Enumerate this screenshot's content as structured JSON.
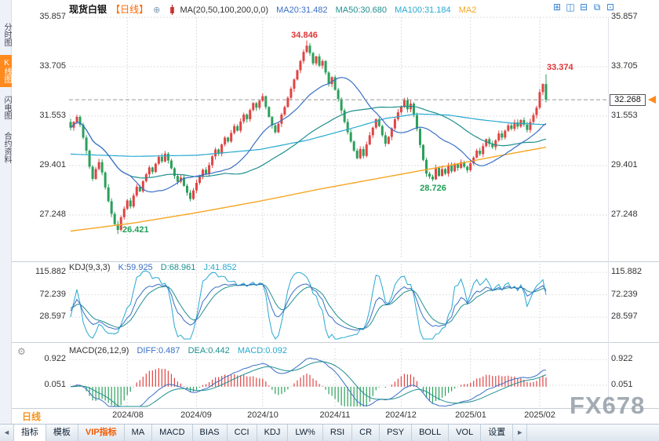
{
  "header": {
    "symbol": "现货白银",
    "period_tag": "【日线】",
    "ma_settings": "MA(20,50,100,200,0,0)",
    "ma20_value": "MA20:31.482",
    "ma50_value": "MA50:30.680",
    "ma100_value": "MA100:31.184",
    "ma200_value": "MA2"
  },
  "icons": {
    "add": "⊕",
    "layout_grid": "⊞",
    "layout_split": "◫",
    "layout_minus": "⊟",
    "layout_overlay": "⧉",
    "layout_box": "⊡",
    "gear": "⚙",
    "scroll_left": "◄",
    "scroll_right": "►"
  },
  "sidebar": {
    "items": [
      {
        "label": "分时图"
      },
      {
        "label": "K线图"
      },
      {
        "label": "闪电图"
      },
      {
        "label": "合约资料"
      }
    ]
  },
  "price_axis": {
    "ticks": [
      "35.857",
      "33.705",
      "31.553",
      "29.401",
      "27.248"
    ],
    "current": "32.268"
  },
  "annotations": {
    "peak_high": "34.846",
    "recent_high": "33.374",
    "december_low": "28.726",
    "august_low": "26.421"
  },
  "kdj_panel": {
    "title": "KDJ(9,3,3)",
    "k": "K:59.925",
    "d": "D:68.961",
    "j": "J:41.852",
    "ticks": [
      "115.882",
      "72.239",
      "28.597"
    ]
  },
  "macd_panel": {
    "title": "MACD(26,12,9)",
    "diff": "DIFF:0.487",
    "dea": "DEA:0.442",
    "macd": "MACD:0.092",
    "ticks": [
      "0.922",
      "0.051"
    ]
  },
  "xaxis": {
    "months": [
      "2024/08",
      "2024/09",
      "2024/10",
      "2024/11",
      "2024/12",
      "2025/01",
      "2025/02"
    ]
  },
  "bottom_left_period": "日线",
  "watermark": "FX678",
  "toolbar": {
    "items": [
      "指标",
      "模板",
      "VIP指标",
      "MA",
      "MACD",
      "BIAS",
      "CCI",
      "KDJ",
      "LW%",
      "RSI",
      "CR",
      "PSY",
      "BOLL",
      "VOL",
      "设置"
    ]
  },
  "chart_data": {
    "type": "candlestick",
    "symbol": "现货白银",
    "interval": "daily",
    "date_range": "2024/07 - 2025/02",
    "price_ticks": [
      35.857,
      33.705,
      31.553,
      29.401,
      27.248
    ],
    "current_price": 32.268,
    "month_tick_indices": [
      18,
      40,
      61,
      84,
      105,
      127,
      149
    ],
    "closes": [
      31.05,
      31.3,
      31.52,
      31.18,
      30.62,
      30.05,
      29.35,
      28.82,
      29.25,
      29.55,
      29.1,
      28.45,
      27.85,
      27.3,
      26.85,
      26.6,
      27.15,
      27.52,
      27.88,
      27.62,
      28.1,
      28.48,
      28.28,
      28.72,
      29.02,
      29.32,
      29.12,
      29.48,
      29.78,
      29.58,
      29.92,
      29.62,
      29.28,
      28.95,
      28.7,
      28.88,
      28.52,
      28.22,
      27.95,
      28.32,
      28.65,
      28.92,
      29.22,
      29.05,
      29.42,
      29.8,
      30.1,
      29.92,
      30.32,
      30.62,
      30.45,
      30.82,
      31.12,
      30.92,
      31.32,
      31.62,
      31.42,
      31.82,
      32.12,
      31.92,
      32.22,
      32.42,
      31.95,
      31.52,
      31.15,
      30.85,
      31.22,
      31.62,
      31.95,
      32.35,
      32.75,
      33.15,
      33.55,
      33.95,
      34.35,
      34.62,
      34.3,
      33.85,
      34.15,
      33.75,
      33.95,
      33.45,
      32.95,
      33.25,
      32.7,
      32.3,
      31.8,
      31.3,
      30.85,
      30.45,
      30.05,
      29.72,
      30.12,
      29.82,
      30.32,
      30.72,
      31.05,
      31.42,
      31.12,
      30.72,
      30.35,
      30.65,
      31.02,
      31.42,
      31.72,
      31.95,
      32.25,
      31.85,
      32.1,
      31.6,
      31.0,
      30.3,
      29.65,
      29.05,
      28.92,
      28.8,
      29.3,
      28.95,
      29.25,
      29.05,
      29.4,
      29.15,
      29.48,
      29.3,
      29.55,
      29.35,
      29.2,
      29.5,
      29.75,
      30.05,
      29.9,
      30.25,
      30.55,
      30.35,
      30.2,
      30.5,
      30.8,
      30.62,
      30.92,
      31.15,
      31.0,
      31.28,
      31.1,
      31.38,
      31.18,
      30.95,
      31.3,
      31.6,
      31.92,
      32.6,
      32.95,
      32.268
    ],
    "key_points": {
      "august_low": {
        "index": 15,
        "low": 26.421
      },
      "october_peak": {
        "index": 75,
        "high": 34.846
      },
      "december_low": {
        "index": 115,
        "low": 28.726
      },
      "recent_high": {
        "index": 151,
        "high": 33.374
      }
    },
    "ma100_points": [
      [
        0,
        29.9
      ],
      [
        20,
        29.8
      ],
      [
        40,
        29.85
      ],
      [
        60,
        30.1
      ],
      [
        75,
        30.5
      ],
      [
        90,
        31.05
      ],
      [
        100,
        31.45
      ],
      [
        110,
        31.65
      ],
      [
        120,
        31.6
      ],
      [
        130,
        31.4
      ],
      [
        140,
        31.25
      ],
      [
        151,
        31.184
      ]
    ],
    "ma200_points": [
      [
        0,
        26.55
      ],
      [
        20,
        26.9
      ],
      [
        40,
        27.35
      ],
      [
        60,
        27.85
      ],
      [
        80,
        28.4
      ],
      [
        100,
        28.9
      ],
      [
        120,
        29.4
      ],
      [
        135,
        29.8
      ],
      [
        151,
        30.2
      ]
    ],
    "kdj": {
      "params": [
        9,
        3,
        3
      ],
      "k": 59.925,
      "d": 68.961,
      "j": 41.852,
      "axis": [
        115.882,
        72.239,
        28.597
      ]
    },
    "macd": {
      "params": [
        26,
        12,
        9
      ],
      "diff": 0.487,
      "dea": 0.442,
      "macd": 0.092,
      "axis": [
        0.922,
        0.051
      ]
    },
    "colors": {
      "up": "#e04444",
      "down": "#2ba05a",
      "ma20": "#3a6fc4",
      "ma50": "#1f8f8f",
      "ma100": "#27a9d0",
      "ma200": "#f5a623"
    }
  }
}
